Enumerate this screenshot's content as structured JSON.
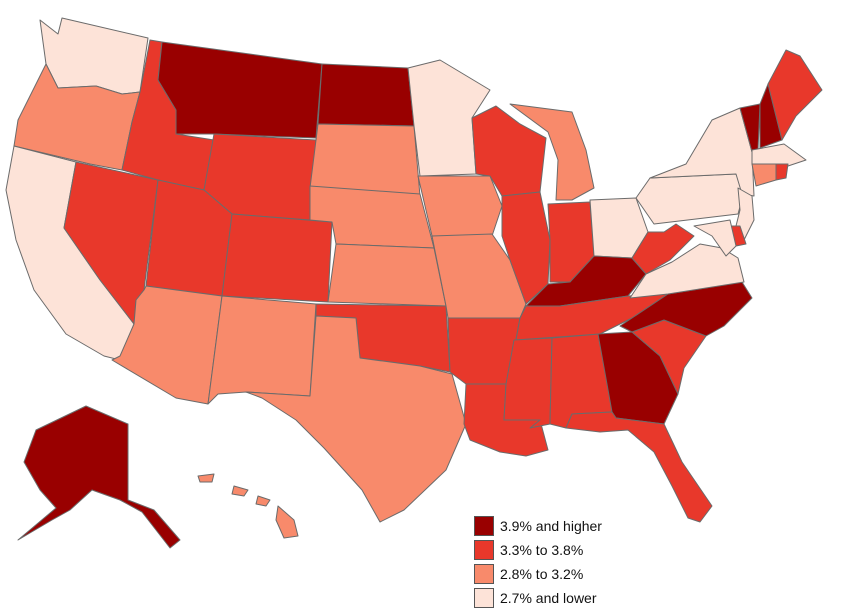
{
  "legend": [
    {
      "label": "3.9% and higher",
      "color": "#990000"
    },
    {
      "label": "3.3% to 3.8%",
      "color": "#e8382b"
    },
    {
      "label": "2.8% to 3.2%",
      "color": "#f88a6b"
    },
    {
      "label": "2.7% and lower",
      "color": "#fde3d8"
    }
  ],
  "states": {
    "WA": 4,
    "OR": 3,
    "CA": 4,
    "NV": 2,
    "ID": 2,
    "MT": 1,
    "WY": 2,
    "UT": 2,
    "AZ": 3,
    "CO": 2,
    "NM": 3,
    "ND": 1,
    "SD": 3,
    "NE": 3,
    "KS": 3,
    "OK": 2,
    "TX": 3,
    "MN": 4,
    "IA": 3,
    "MO": 3,
    "AR": 2,
    "LA": 2,
    "WI": 2,
    "IL": 2,
    "MS": 2,
    "MI": 3,
    "IN": 2,
    "OH": 4,
    "KY": 1,
    "TN": 2,
    "AL": 2,
    "GA": 1,
    "FL": 2,
    "SC": 2,
    "NC": 1,
    "VA": 4,
    "WV": 2,
    "PA": 4,
    "NY": 4,
    "VT": 1,
    "NH": 1,
    "ME": 2,
    "MA": 4,
    "CT": 3,
    "RI": 2,
    "NJ": 4,
    "DE": 2,
    "MD": 4,
    "AK": 1,
    "HI": 3
  }
}
